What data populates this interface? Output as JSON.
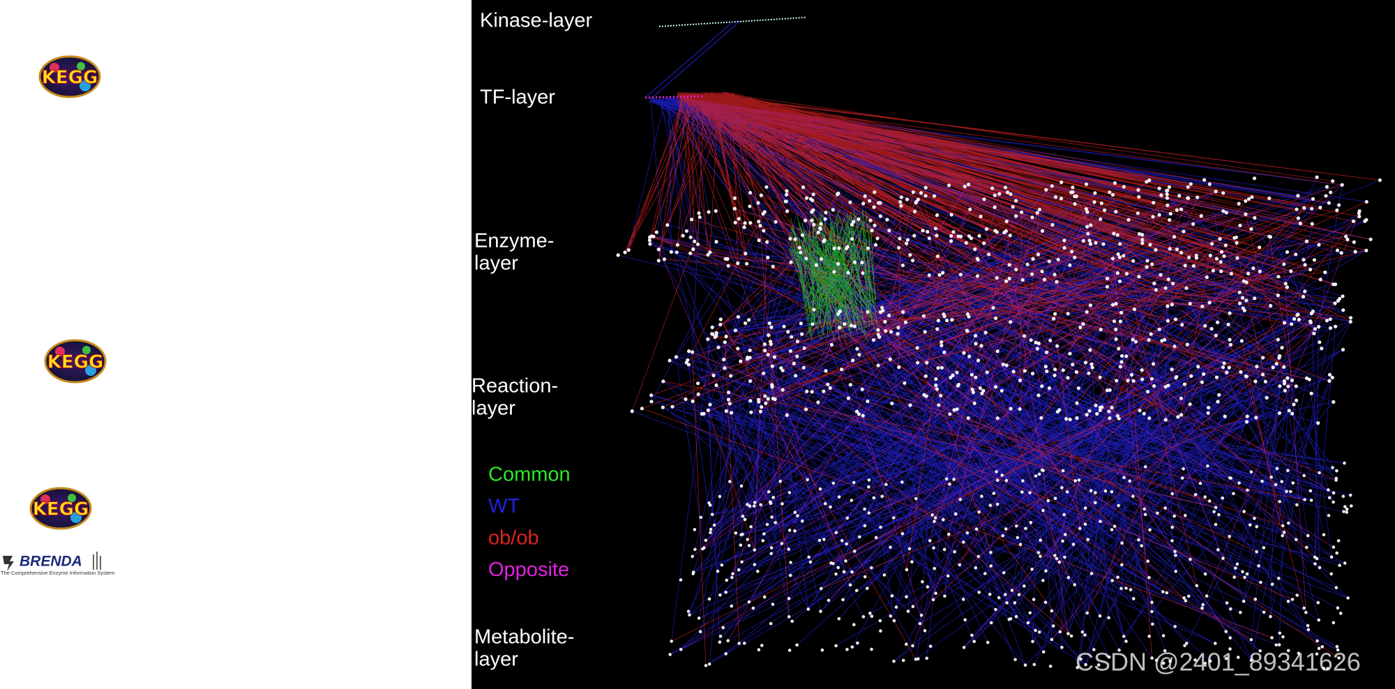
{
  "logos": [
    {
      "label": "KEGG"
    },
    {
      "label": "KEGG"
    },
    {
      "label": "KEGG"
    }
  ],
  "brenda": {
    "title": "BRENDA",
    "subtitle": "The Comprehensive Enzyme Information System"
  },
  "figure": {
    "layers": [
      {
        "lines": [
          "Kinase-layer"
        ]
      },
      {
        "lines": [
          "TF-layer"
        ]
      },
      {
        "lines": [
          "Enzyme-",
          "layer"
        ]
      },
      {
        "lines": [
          "Reaction-",
          "layer"
        ]
      },
      {
        "lines": [
          "Metabolite-",
          "layer"
        ]
      }
    ],
    "legend": [
      {
        "label": "Common",
        "color": "#2ee62e"
      },
      {
        "label": "WT",
        "color": "#2222dd"
      },
      {
        "label": "ob/ob",
        "color": "#e02222"
      },
      {
        "label": "Opposite",
        "color": "#e022e0"
      }
    ]
  },
  "watermark": "CSDN @2401_89341626"
}
